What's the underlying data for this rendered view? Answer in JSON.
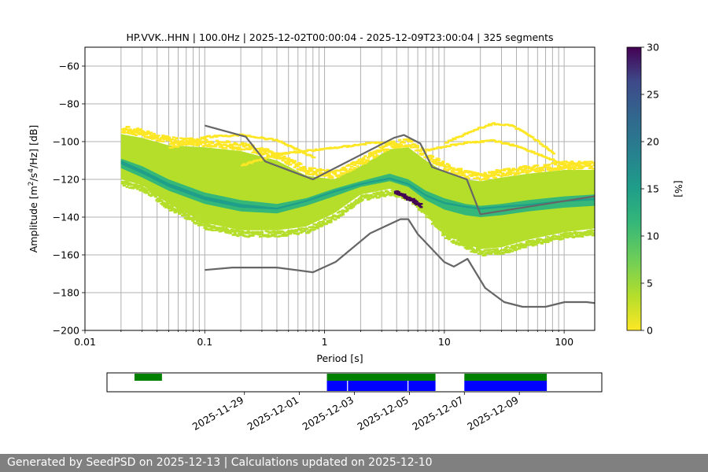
{
  "chart_data": {
    "type": "heatmap",
    "title": "HP.VVK..HHN | 100.0Hz | 2025-12-02T00:00:04 - 2025-12-09T23:00:04 | 325 segments",
    "xlabel": "Period [s]",
    "ylabel_main": "Amplitude [m",
    "ylabel_sup1": "2",
    "ylabel_mid": "/s",
    "ylabel_sup2": "4",
    "ylabel_end": "/Hz] [dB]",
    "x_scale": "log",
    "xlim": [
      0.01,
      180
    ],
    "ylim": [
      -200,
      -50
    ],
    "x_ticks": [
      {
        "v": 0.01,
        "label": "0.01"
      },
      {
        "v": 0.1,
        "label": "0.1"
      },
      {
        "v": 1,
        "label": "1"
      },
      {
        "v": 10,
        "label": "10"
      },
      {
        "v": 100,
        "label": "100"
      }
    ],
    "y_ticks": [
      {
        "v": -60,
        "label": "−60"
      },
      {
        "v": -80,
        "label": "−80"
      },
      {
        "v": -100,
        "label": "−100"
      },
      {
        "v": -120,
        "label": "−120"
      },
      {
        "v": -140,
        "label": "−140"
      },
      {
        "v": -160,
        "label": "−160"
      },
      {
        "v": -180,
        "label": "−180"
      },
      {
        "v": -200,
        "label": "−200"
      }
    ],
    "grid": true,
    "colorbar": {
      "label": "[%]",
      "range": [
        0,
        30
      ],
      "ticks": [
        {
          "v": 0,
          "label": "0"
        },
        {
          "v": 5,
          "label": "5"
        },
        {
          "v": 10,
          "label": "10"
        },
        {
          "v": 15,
          "label": "15"
        },
        {
          "v": 20,
          "label": "20"
        },
        {
          "v": 25,
          "label": "25"
        },
        {
          "v": 30,
          "label": "30"
        }
      ],
      "colormap": "viridis_r"
    },
    "density_bands": [
      {
        "name": "outer",
        "percent": 2,
        "period": [
          0.02,
          0.03,
          0.05,
          0.1,
          0.2,
          0.4,
          0.7,
          1.2,
          2.0,
          3.5,
          5,
          7,
          10,
          15,
          20,
          30,
          50,
          100,
          180
        ],
        "upper": [
          -96,
          -98,
          -102,
          -103,
          -105,
          -110,
          -118,
          -120,
          -113,
          -104,
          -103,
          -110,
          -116,
          -120,
          -121,
          -119,
          -117,
          -115,
          -115
        ],
        "lower": [
          -120,
          -123,
          -133,
          -143,
          -147,
          -147,
          -145,
          -138,
          -128,
          -125,
          -128,
          -137,
          -148,
          -154,
          -157,
          -156,
          -152,
          -148,
          -146
        ]
      },
      {
        "name": "middle",
        "percent": 5,
        "period": [
          0.02,
          0.03,
          0.05,
          0.1,
          0.2,
          0.4,
          0.7,
          1.2,
          2.0,
          3.5,
          5,
          7,
          10,
          15,
          20,
          30,
          50,
          100,
          180
        ],
        "upper": [
          -104,
          -108,
          -116,
          -124,
          -128,
          -131,
          -127,
          -122,
          -118,
          -114,
          -116,
          -124,
          -128,
          -131,
          -132,
          -131,
          -129,
          -127,
          -126
        ],
        "lower": [
          -116,
          -122,
          -130,
          -138,
          -141,
          -142,
          -138,
          -132,
          -126,
          -124,
          -128,
          -135,
          -143,
          -146,
          -147,
          -146,
          -144,
          -141,
          -140
        ]
      },
      {
        "name": "inner",
        "percent": 10,
        "period": [
          0.02,
          0.03,
          0.05,
          0.1,
          0.2,
          0.4,
          0.7,
          1.2,
          2.0,
          3.5,
          5,
          7,
          10,
          15,
          20,
          30,
          50,
          100,
          180
        ],
        "upper": [
          -109,
          -113,
          -120,
          -127,
          -131,
          -133,
          -130,
          -125,
          -121,
          -117,
          -120,
          -126,
          -130,
          -133,
          -134,
          -133,
          -131,
          -129,
          -128
        ],
        "lower": [
          -114,
          -119,
          -126,
          -133,
          -137,
          -138,
          -134,
          -129,
          -124,
          -121,
          -124,
          -131,
          -136,
          -139,
          -140,
          -139,
          -137,
          -135,
          -134
        ]
      },
      {
        "name": "mode",
        "percent": 14,
        "period": [
          0.02,
          0.03,
          0.05,
          0.1,
          0.2,
          0.4,
          0.7,
          1.2,
          2.0,
          3.5,
          5,
          7,
          10,
          15,
          20,
          30,
          50,
          100,
          180
        ],
        "upper": [
          -110,
          -115,
          -122,
          -129,
          -133,
          -135,
          -131,
          -126,
          -122,
          -119,
          -122,
          -128,
          -132,
          -134,
          -135,
          -134,
          -133,
          -131,
          -130
        ],
        "lower": [
          -112,
          -117,
          -124,
          -131,
          -135,
          -136,
          -132,
          -127,
          -123,
          -120,
          -123,
          -129,
          -133,
          -135,
          -136,
          -135,
          -134,
          -132,
          -131
        ]
      }
    ],
    "sparse_arcs": [
      {
        "name": "upper-arc",
        "percent": 1,
        "period": [
          0.05,
          0.1,
          0.2,
          0.4,
          0.8
        ],
        "value": [
          -103,
          -97,
          -96,
          -99,
          -108
        ]
      },
      {
        "name": "upper-arc-2",
        "percent": 1,
        "period": [
          0.2,
          0.4,
          0.8,
          1.5,
          2.5,
          4
        ],
        "value": [
          -112,
          -106,
          -104,
          -102,
          -100,
          -101
        ]
      },
      {
        "name": "long-period-arc",
        "percent": 1,
        "period": [
          10,
          15,
          20,
          25,
          35,
          50,
          80
        ],
        "value": [
          -100,
          -95,
          -92,
          -90,
          -91,
          -96,
          -106
        ]
      },
      {
        "name": "long-period-arc-2",
        "percent": 1,
        "period": [
          7,
          10,
          15,
          25,
          40,
          70,
          120
        ],
        "value": [
          -104,
          -102,
          -100,
          -99,
          -102,
          -108,
          -114
        ]
      },
      {
        "name": "spike-4-6s",
        "percent": 30,
        "period": [
          3.8,
          4.3,
          4.8,
          5.3,
          5.8,
          6.3
        ],
        "value": [
          -126,
          -127,
          -129,
          -130,
          -132,
          -133
        ]
      }
    ],
    "noise_models": [
      {
        "name": "NHNM",
        "period": [
          0.1,
          0.22,
          0.32,
          0.8,
          3.8,
          4.6,
          6.3,
          7.9,
          15.4,
          20,
          354.8
        ],
        "value": [
          -91.5,
          -97.4,
          -110.5,
          -120,
          -98,
          -96.5,
          -101,
          -113.5,
          -120,
          -138.5,
          -126
        ]
      },
      {
        "name": "NLNM",
        "period": [
          0.1,
          0.17,
          0.4,
          0.8,
          1.24,
          2.4,
          4.3,
          5,
          6,
          10,
          12,
          15.6,
          21.9,
          31.6,
          45,
          70,
          101,
          154,
          328
        ],
        "value": [
          -168,
          -166.7,
          -166.7,
          -169.2,
          -163.7,
          -148.6,
          -141.1,
          -141.1,
          -149,
          -163.8,
          -166.2,
          -162.1,
          -177.5,
          -185,
          -187.5,
          -187.5,
          -185,
          -185,
          -187.5
        ]
      }
    ],
    "data_availability": {
      "tick_labels": [
        "2025-11-29",
        "2025-12-01",
        "2025-12-03",
        "2025-12-05",
        "2025-12-07",
        "2025-12-09"
      ],
      "range_days": [
        -5.0,
        13.0
      ],
      "tick_days": [
        0,
        2,
        4,
        6,
        8,
        10
      ],
      "green_segments": [
        [
          -4.0,
          -3.0
        ],
        [
          3.0,
          6.95
        ],
        [
          8.0,
          11.0
        ]
      ],
      "blue_segments": [
        [
          3.0,
          6.95
        ],
        [
          8.0,
          11.0
        ]
      ],
      "blue_gaps": [
        3.75,
        5.95
      ],
      "colors": {
        "available": "#008000",
        "used": "#0000ff"
      }
    }
  },
  "colors": {
    "nlnm_nhnm": "#666666",
    "grid": "#b0b0b0"
  },
  "footer": "Generated by SeedPSD on 2025-12-13 | Calculations updated on 2025-12-10"
}
